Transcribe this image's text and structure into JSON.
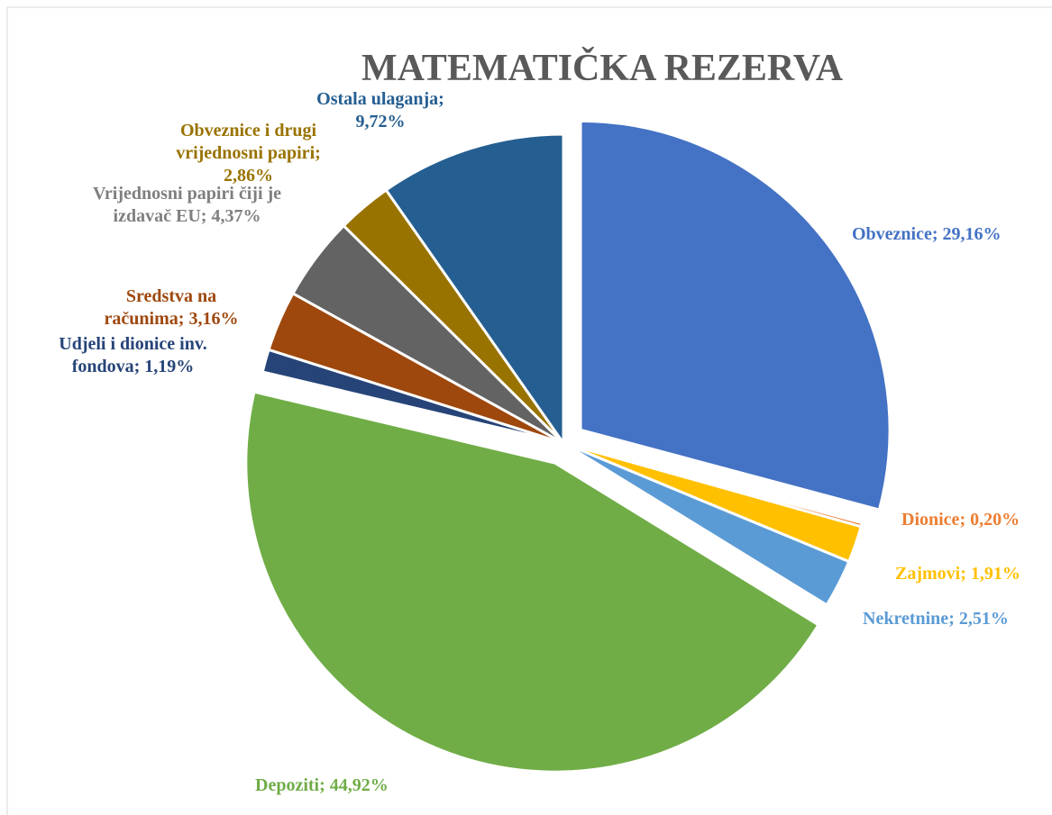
{
  "chart_data": {
    "type": "pie",
    "title": "MATEMATIČKA REZERVA",
    "categories": [
      "Obveznice",
      "Dionice",
      "Zajmovi",
      "Nekretnine",
      "Depoziti",
      "Udjeli i dionice inv. fondova",
      "Sredstva na računima",
      "Vrijednosni papiri čiji je izdavač EU",
      "Obveznice i drugi vrijednosni papiri",
      "Ostala ulaganja"
    ],
    "values": [
      29.16,
      0.2,
      1.91,
      2.51,
      44.92,
      1.19,
      3.16,
      4.37,
      2.86,
      9.72
    ],
    "value_labels": [
      "29,16%",
      "0,20%",
      "1,91%",
      "2,51%",
      "44,92%",
      "1,19%",
      "3,16%",
      "4,37%",
      "2,86%",
      "9,72%"
    ],
    "label_separator": "; ",
    "colors": [
      "#4472c4",
      "#ed7d31",
      "#ffc000",
      "#5b9bd5",
      "#70ad47",
      "#264478",
      "#9e480e",
      "#636363",
      "#997300",
      "#255e91"
    ],
    "exploded": [
      true,
      false,
      false,
      false,
      true,
      false,
      false,
      false,
      false,
      false
    ]
  }
}
